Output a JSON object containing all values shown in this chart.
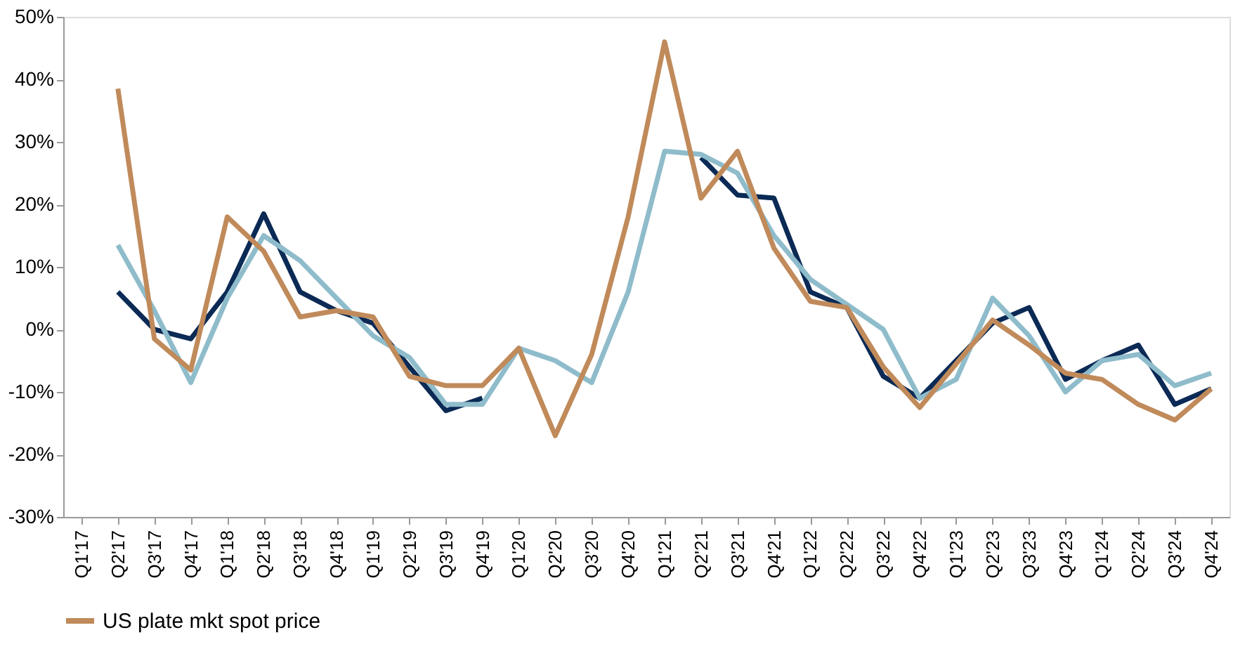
{
  "chart_data": {
    "type": "line",
    "categories": [
      "Q1'17",
      "Q2'17",
      "Q3'17",
      "Q4'17",
      "Q1'18",
      "Q2'18",
      "Q3'18",
      "Q4'18",
      "Q1'19",
      "Q2'19",
      "Q3'19",
      "Q4'19",
      "Q1'20",
      "Q2'20",
      "Q3'20",
      "Q4'20",
      "Q1'21",
      "Q2'21",
      "Q3'21",
      "Q4'21",
      "Q1'22",
      "Q2'22",
      "Q3'22",
      "Q4'22",
      "Q1'23",
      "Q2'23",
      "Q3'23",
      "Q4'23",
      "Q1'24",
      "Q2'24",
      "Q3'24",
      "Q4'24"
    ],
    "series": [
      {
        "color": "#0b2a55",
        "values": [
          null,
          6,
          0,
          -1.5,
          6,
          18.5,
          6,
          3,
          1,
          -6,
          -13,
          -11,
          null,
          null,
          null,
          null,
          null,
          27.5,
          21.5,
          21,
          6,
          3.5,
          -7.5,
          -11,
          -5,
          1,
          3.5,
          -8,
          -5,
          -2.5,
          -12,
          -9.5
        ]
      },
      {
        "color": "#8fbccb",
        "values": [
          null,
          13.5,
          3,
          -8.5,
          5,
          15,
          11,
          5,
          -1,
          -4.5,
          -12,
          -12,
          -3,
          -5,
          -8.5,
          6,
          28.5,
          28,
          25,
          15,
          8,
          4,
          0,
          -11,
          -8,
          5,
          -1,
          -10,
          -5,
          -4,
          -9,
          -7
        ]
      },
      {
        "name": "US plate mkt spot price",
        "color": "#c08a5a",
        "values": [
          null,
          38.5,
          -1.5,
          -6.5,
          18,
          12.5,
          2,
          3,
          2,
          -7.5,
          -9,
          -9,
          -3,
          -17,
          -4,
          18,
          46,
          21,
          28.5,
          13,
          4.5,
          3.5,
          -6,
          -12.5,
          -5.5,
          1.5,
          -2.5,
          -7,
          -8,
          -12,
          -14.5,
          -9.5
        ]
      }
    ],
    "ylim": [
      -30,
      50
    ],
    "yticks": [
      {
        "value": -30,
        "label": "-30%"
      },
      {
        "value": -20,
        "label": "-20%"
      },
      {
        "value": -10,
        "label": "-10%"
      },
      {
        "value": 0,
        "label": "0%"
      },
      {
        "value": 10,
        "label": "10%"
      },
      {
        "value": 20,
        "label": "20%"
      },
      {
        "value": 30,
        "label": "30%"
      },
      {
        "value": 40,
        "label": "40%"
      },
      {
        "value": 50,
        "label": "50%"
      }
    ],
    "legend": "bottom",
    "grid": false,
    "marker": "none",
    "line_style": "solid"
  }
}
